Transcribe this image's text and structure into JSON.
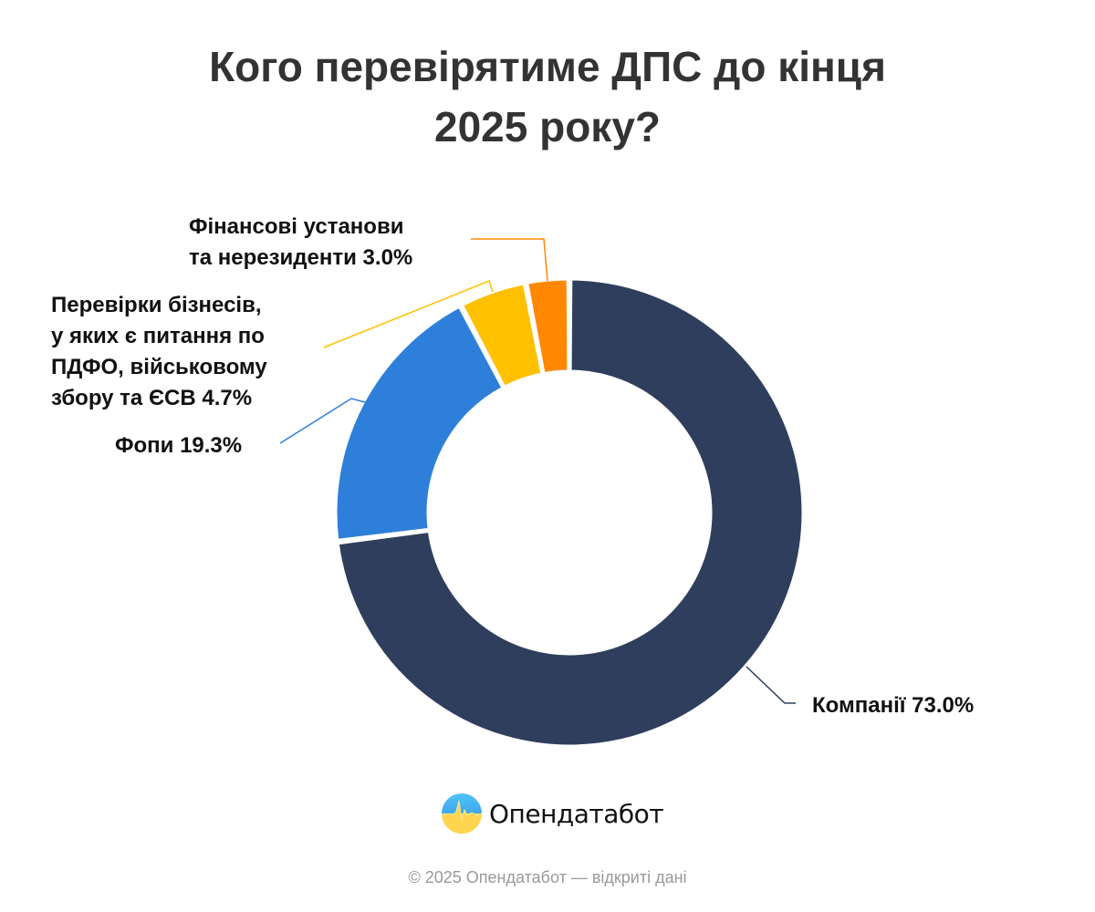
{
  "title": {
    "line1": "Кого перевірятиме ДПС до кінця",
    "line2": "2025 року?"
  },
  "labels": {
    "finansovi": {
      "line1": "Фінансові установи",
      "line2": "та нерезиденти 3.0%"
    },
    "perevirky": {
      "line1": "Перевірки бізнесів,",
      "line2": "у яких є питання по",
      "line3": "ПДФО, військовому",
      "line4": "збору та ЄСВ 4.7%"
    },
    "fopy": "Фопи 19.3%",
    "kompanii": "Компанії 73.0%"
  },
  "logo": {
    "name": "Опендатабот"
  },
  "footer": "© 2025 Опендатабот — відкриті дані",
  "colors": {
    "kompanii": "#2F3E5C",
    "fopy": "#2E7FD9",
    "perevirky": "#FFC000",
    "finansovi": "#FF8800",
    "title": "#333333",
    "footer": "#999999"
  },
  "chart_data": {
    "type": "pie",
    "subtype": "donut",
    "title": "Кого перевірятиме ДПС до кінця 2025 року?",
    "categories": [
      "Компанії",
      "Фопи",
      "Перевірки бізнесів, у яких є питання по ПДФО, військовому збору та ЄСВ",
      "Фінансові установи та нерезиденти"
    ],
    "values": [
      73.0,
      19.3,
      4.7,
      3.0
    ],
    "unit": "%",
    "colors": [
      "#2F3E5C",
      "#2E7FD9",
      "#FFC000",
      "#FF8800"
    ],
    "start_angle": "top, clockwise",
    "legend": "none (callout labels)"
  }
}
